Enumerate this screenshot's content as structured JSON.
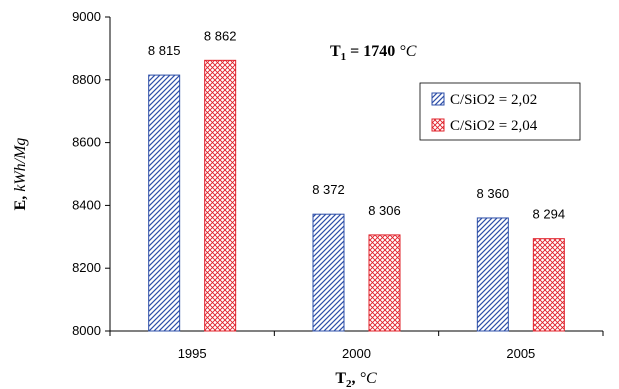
{
  "chart_data": {
    "type": "bar",
    "title": "",
    "annotation": {
      "prefix": "T",
      "sub": "1",
      "value": " = 1740 ",
      "unit": "°C"
    },
    "xlabel": {
      "prefix": "T",
      "sub": "2",
      "sep": ", ",
      "unit": "°C"
    },
    "ylabel": {
      "prefix": "E",
      "sep": ", ",
      "unit": "kWh/Mg"
    },
    "categories": [
      "1995",
      "2000",
      "2005"
    ],
    "ylim": [
      8000,
      9000
    ],
    "yticks": [
      8000,
      8200,
      8400,
      8600,
      8800,
      9000
    ],
    "ytick_labels": [
      "8000",
      "8200",
      "8400",
      "8600",
      "8800",
      "9000"
    ],
    "series": [
      {
        "name": "C/SiO2 = 2,02",
        "values": [
          8815,
          8372,
          8360
        ],
        "labels": [
          "8 815",
          "8 372",
          "8 360"
        ],
        "color": "#2e4fa8",
        "pattern": "diagonal"
      },
      {
        "name": "C/SiO2 = 2,04",
        "values": [
          8862,
          8306,
          8294
        ],
        "labels": [
          "8 862",
          "8 306",
          "8 294"
        ],
        "color": "#e0202a",
        "pattern": "crosshatch"
      }
    ],
    "legend_position": "top-right",
    "grid": false
  }
}
